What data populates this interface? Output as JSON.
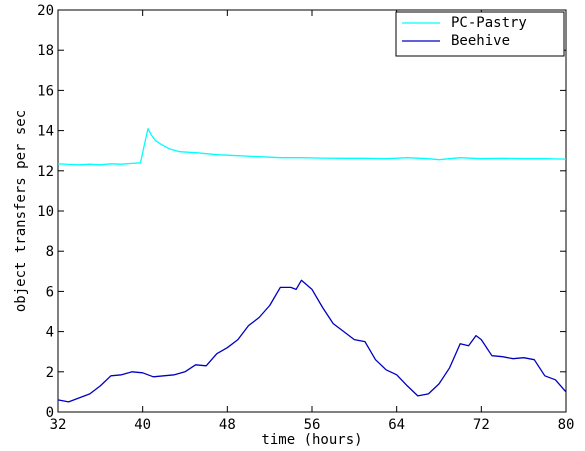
{
  "chart_data": {
    "type": "line",
    "title": "",
    "xlabel": "time (hours)",
    "ylabel": "object transfers per sec",
    "xlim": [
      32,
      80
    ],
    "ylim": [
      0,
      20
    ],
    "xticks": [
      32,
      40,
      48,
      56,
      64,
      72,
      80
    ],
    "yticks": [
      0,
      2,
      4,
      6,
      8,
      10,
      12,
      14,
      16,
      18,
      20
    ],
    "grid": false,
    "legend": "top-right",
    "series": [
      {
        "name": "PC-Pastry",
        "color": "#00ffff",
        "x": [
          32,
          33,
          34,
          35,
          36,
          37,
          38,
          39,
          39.8,
          40.2,
          40.5,
          40.8,
          41.2,
          41.8,
          42.5,
          43.5,
          45,
          47,
          49,
          51,
          53,
          55,
          57,
          59,
          61,
          63,
          65,
          67,
          68,
          70,
          72,
          74,
          76,
          78,
          80
        ],
        "y": [
          12.35,
          12.32,
          12.3,
          12.33,
          12.3,
          12.35,
          12.33,
          12.37,
          12.4,
          13.4,
          14.1,
          13.8,
          13.5,
          13.3,
          13.1,
          12.95,
          12.9,
          12.8,
          12.75,
          12.7,
          12.65,
          12.65,
          12.63,
          12.62,
          12.62,
          12.6,
          12.65,
          12.6,
          12.55,
          12.65,
          12.6,
          12.62,
          12.6,
          12.6,
          12.58
        ]
      },
      {
        "name": "Beehive",
        "color": "#0000c0",
        "x": [
          32,
          33,
          34,
          35,
          36,
          37,
          38,
          39,
          40,
          41,
          42,
          43,
          44,
          45,
          46,
          47,
          48,
          49,
          50,
          51,
          52,
          53,
          54,
          54.5,
          55,
          56,
          57,
          58,
          59,
          60,
          61,
          62,
          63,
          64,
          65,
          66,
          67,
          68,
          69,
          70,
          70.8,
          71.5,
          72,
          73,
          74,
          75,
          76,
          77,
          78,
          79,
          80
        ],
        "y": [
          0.6,
          0.5,
          0.7,
          0.9,
          1.3,
          1.8,
          1.85,
          2.0,
          1.95,
          1.75,
          1.8,
          1.85,
          2.0,
          2.35,
          2.3,
          2.9,
          3.2,
          3.6,
          4.3,
          4.7,
          5.3,
          6.2,
          6.2,
          6.1,
          6.55,
          6.1,
          5.2,
          4.4,
          4.0,
          3.6,
          3.5,
          2.6,
          2.1,
          1.85,
          1.3,
          0.8,
          0.9,
          1.4,
          2.2,
          3.4,
          3.3,
          3.8,
          3.6,
          2.8,
          2.75,
          2.65,
          2.7,
          2.6,
          1.8,
          1.6,
          1.0
        ]
      }
    ]
  }
}
